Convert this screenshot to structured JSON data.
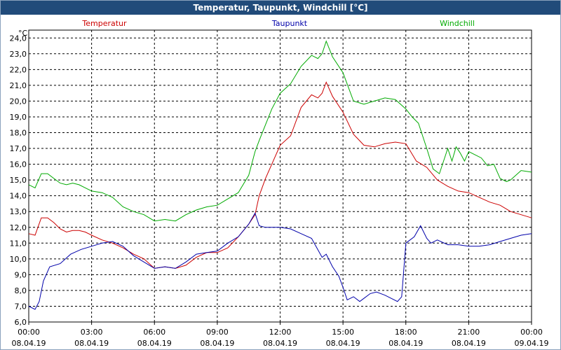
{
  "chart_data": {
    "type": "line",
    "title": "Temperatur, Taupunkt, Windchill [°C]",
    "ylabel": "°C",
    "xlabel": "",
    "ylim": [
      6.0,
      24.5
    ],
    "xlim_hours": [
      0,
      24
    ],
    "grid": true,
    "yticks": [
      6.0,
      7.0,
      8.0,
      9.0,
      10.0,
      11.0,
      12.0,
      13.0,
      14.0,
      15.0,
      16.0,
      17.0,
      18.0,
      19.0,
      20.0,
      21.0,
      22.0,
      23.0,
      24.0
    ],
    "ytick_labels": [
      "6,0",
      "7,0",
      "8,0",
      "9,0",
      "10,0",
      "11,0",
      "12,0",
      "13,0",
      "14,0",
      "15,0",
      "16,0",
      "17,0",
      "18,0",
      "19,0",
      "20,0",
      "21,0",
      "22,0",
      "23,0",
      "24,0"
    ],
    "xticks": [
      {
        "hour": 0,
        "time": "00:00",
        "date": "08.04.19"
      },
      {
        "hour": 3,
        "time": "03:00",
        "date": "08.04.19"
      },
      {
        "hour": 6,
        "time": "06:00",
        "date": "08.04.19"
      },
      {
        "hour": 9,
        "time": "09:00",
        "date": "08.04.19"
      },
      {
        "hour": 12,
        "time": "12:00",
        "date": "08.04.19"
      },
      {
        "hour": 15,
        "time": "15:00",
        "date": "08.04.19"
      },
      {
        "hour": 18,
        "time": "18:00",
        "date": "08.04.19"
      },
      {
        "hour": 21,
        "time": "21:00",
        "date": "08.04.19"
      },
      {
        "hour": 24,
        "time": "00:00",
        "date": "09.04.19"
      }
    ],
    "series": [
      {
        "name": "Temperatur",
        "color": "#cc0000",
        "legend_pos": "left",
        "x": [
          0,
          0.3,
          0.6,
          0.9,
          1.2,
          1.5,
          1.8,
          2.1,
          2.4,
          2.7,
          3,
          3.5,
          4,
          4.5,
          5,
          5.5,
          6,
          6.5,
          7,
          7.5,
          8,
          8.5,
          9,
          9.5,
          10,
          10.5,
          10.8,
          11,
          11.3,
          11.6,
          12,
          12.5,
          13,
          13.5,
          13.8,
          14,
          14.2,
          14.5,
          15,
          15.5,
          16,
          16.5,
          17,
          17.5,
          18,
          18.5,
          19,
          19.5,
          20,
          20.5,
          21,
          21.5,
          22,
          22.5,
          23,
          23.5,
          24
        ],
        "values": [
          11.6,
          11.5,
          12.6,
          12.6,
          12.3,
          11.9,
          11.7,
          11.8,
          11.8,
          11.7,
          11.5,
          11.2,
          11.0,
          10.7,
          10.3,
          10.0,
          9.4,
          9.5,
          9.4,
          9.6,
          10.1,
          10.4,
          10.4,
          10.7,
          11.4,
          12.2,
          12.8,
          14.0,
          15.1,
          16.0,
          17.2,
          17.8,
          19.6,
          20.4,
          20.2,
          20.5,
          21.2,
          20.3,
          19.3,
          17.9,
          17.2,
          17.1,
          17.3,
          17.4,
          17.3,
          16.2,
          15.8,
          15.0,
          14.6,
          14.3,
          14.2,
          13.9,
          13.6,
          13.4,
          13.0,
          12.8,
          12.6
        ]
      },
      {
        "name": "Taupunkt",
        "color": "#0000aa",
        "legend_pos": "center",
        "x": [
          0,
          0.3,
          0.5,
          0.7,
          1,
          1.5,
          2,
          2.5,
          3,
          3.5,
          4,
          4.5,
          5,
          5.5,
          6,
          6.5,
          7,
          7.5,
          8,
          8.5,
          9,
          9.5,
          10,
          10.5,
          10.8,
          11,
          11.3,
          11.6,
          12,
          12.5,
          13,
          13.5,
          14,
          14.2,
          14.5,
          14.8,
          15,
          15.2,
          15.5,
          15.8,
          16,
          16.3,
          16.6,
          17,
          17.3,
          17.6,
          17.8,
          18,
          18.2,
          18.4,
          18.7,
          19,
          19.2,
          19.5,
          20,
          20.5,
          21,
          21.5,
          22,
          22.5,
          23,
          23.5,
          24
        ],
        "values": [
          7.0,
          6.8,
          7.3,
          8.6,
          9.5,
          9.7,
          10.3,
          10.6,
          10.8,
          11.0,
          11.1,
          10.8,
          10.2,
          9.8,
          9.4,
          9.5,
          9.4,
          9.8,
          10.3,
          10.4,
          10.5,
          11.0,
          11.4,
          12.2,
          12.9,
          12.1,
          12.0,
          12.0,
          12.0,
          11.9,
          11.6,
          11.3,
          10.1,
          10.3,
          9.5,
          8.9,
          8.2,
          7.4,
          7.6,
          7.3,
          7.5,
          7.8,
          7.9,
          7.7,
          7.5,
          7.3,
          7.6,
          11.0,
          11.2,
          11.4,
          12.1,
          11.3,
          11.0,
          11.2,
          10.9,
          10.9,
          10.8,
          10.8,
          10.9,
          11.1,
          11.3,
          11.5,
          11.6
        ]
      },
      {
        "name": "Windchill",
        "color": "#00aa00",
        "legend_pos": "right",
        "x": [
          0,
          0.3,
          0.6,
          0.9,
          1.2,
          1.5,
          1.8,
          2.1,
          2.4,
          2.7,
          3,
          3.5,
          4,
          4.5,
          5,
          5.5,
          6,
          6.5,
          7,
          7.5,
          8,
          8.5,
          9,
          9.5,
          10,
          10.5,
          10.8,
          11,
          11.3,
          11.6,
          12,
          12.5,
          13,
          13.5,
          13.8,
          14,
          14.2,
          14.5,
          15,
          15.5,
          16,
          16.5,
          17,
          17.5,
          18,
          18.3,
          18.6,
          19,
          19.3,
          19.6,
          20,
          20.2,
          20.4,
          20.6,
          20.8,
          21,
          21.3,
          21.6,
          21.9,
          22.2,
          22.5,
          22.8,
          23,
          23.5,
          24
        ],
        "values": [
          14.7,
          14.5,
          15.4,
          15.4,
          15.1,
          14.8,
          14.7,
          14.8,
          14.7,
          14.5,
          14.3,
          14.2,
          13.9,
          13.3,
          13.0,
          12.8,
          12.4,
          12.5,
          12.4,
          12.8,
          13.1,
          13.3,
          13.4,
          13.8,
          14.2,
          15.3,
          16.8,
          17.5,
          18.5,
          19.5,
          20.5,
          21.1,
          22.2,
          22.9,
          22.7,
          23.0,
          23.8,
          22.8,
          21.8,
          20.0,
          19.8,
          20.0,
          20.2,
          20.1,
          19.5,
          19.0,
          18.6,
          17.0,
          15.7,
          15.4,
          17.0,
          16.2,
          17.1,
          16.7,
          16.2,
          16.8,
          16.6,
          16.4,
          15.9,
          16.0,
          15.1,
          14.9,
          15.0,
          15.6,
          15.5
        ]
      }
    ]
  }
}
